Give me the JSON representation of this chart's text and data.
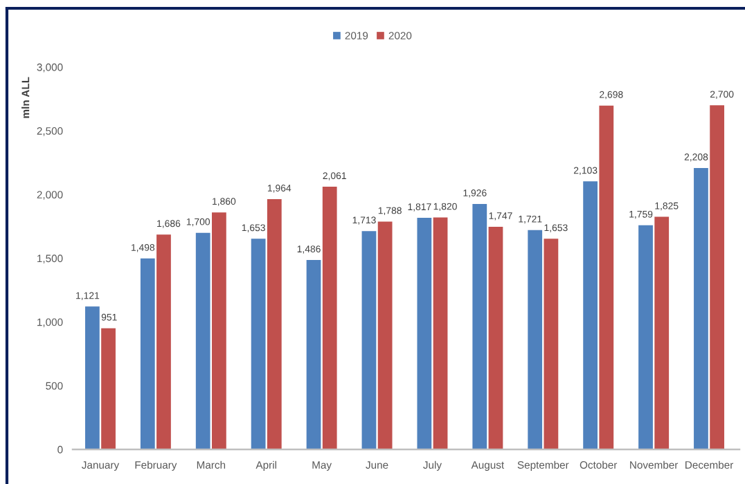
{
  "chart_data": {
    "type": "bar",
    "ylabel": "mln ALL",
    "categories": [
      "January",
      "February",
      "March",
      "April",
      "May",
      "June",
      "July",
      "August",
      "September",
      "October",
      "November",
      "December"
    ],
    "series": [
      {
        "name": "2019",
        "color": "#4f81bd",
        "values": [
          1121,
          1498,
          1700,
          1653,
          1486,
          1713,
          1817,
          1926,
          1721,
          2103,
          1759,
          2208
        ],
        "value_labels": [
          "1,121",
          "1,498",
          "1,700",
          "1,653",
          "1,486",
          "1,713",
          "1,817",
          "1,926",
          "1,721",
          "2,103",
          "1,759",
          "2,208"
        ]
      },
      {
        "name": "2020",
        "color": "#c0504d",
        "values": [
          951,
          1686,
          1860,
          1964,
          2061,
          1788,
          1820,
          1747,
          1653,
          2698,
          1825,
          2700
        ],
        "value_labels": [
          "951",
          "1,686",
          "1,860",
          "1,964",
          "2,061",
          "1,788",
          "1,820",
          "1,747",
          "1,653",
          "2,698",
          "1,825",
          "2,700"
        ]
      }
    ],
    "ylim": [
      0,
      3000
    ],
    "yticks": [
      {
        "value": 0,
        "label": "0"
      },
      {
        "value": 500,
        "label": "500"
      },
      {
        "value": 1000,
        "label": "1,000"
      },
      {
        "value": 1500,
        "label": "1,500"
      },
      {
        "value": 2000,
        "label": "2,000"
      },
      {
        "value": 2500,
        "label": "2,500"
      },
      {
        "value": 3000,
        "label": "3,000"
      }
    ],
    "legend": "top"
  }
}
